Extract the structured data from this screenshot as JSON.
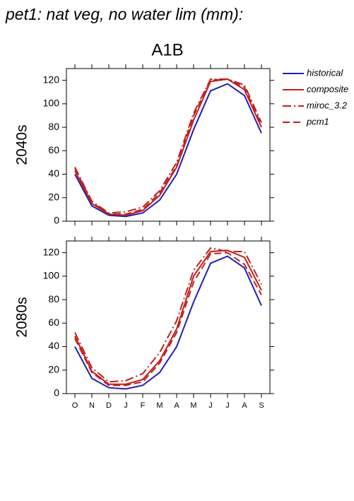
{
  "title": "pet1: nat veg, no water lim (mm):",
  "scenario": "A1B",
  "chart_data": [
    {
      "type": "line",
      "ylabel": "2040s",
      "ylim": [
        0,
        130
      ],
      "yticks": [
        0,
        20,
        40,
        60,
        80,
        100,
        120
      ],
      "series": [
        {
          "name": "historical",
          "color": "#1f1fb4",
          "dash": "none",
          "values": [
            40,
            13,
            5,
            4,
            7,
            18,
            40,
            78,
            111,
            117,
            107,
            75
          ]
        },
        {
          "name": "composite",
          "color": "#c0201f",
          "dash": "none",
          "values": [
            43,
            15,
            6,
            5,
            9,
            22,
            46,
            86,
            119,
            121,
            112,
            80
          ]
        },
        {
          "name": "miroc_3.2",
          "color": "#c0201f",
          "dash": "12,4,2,4",
          "values": [
            46,
            17,
            7,
            8,
            12,
            26,
            50,
            92,
            121,
            121,
            116,
            84
          ]
        },
        {
          "name": "pcm1",
          "color": "#c0201f",
          "dash": "10,5",
          "values": [
            45,
            16,
            6,
            6,
            10,
            24,
            47,
            90,
            120,
            121,
            114,
            82
          ]
        }
      ]
    },
    {
      "type": "line",
      "ylabel": "2080s",
      "ylim": [
        0,
        130
      ],
      "yticks": [
        0,
        20,
        40,
        60,
        80,
        100,
        120
      ],
      "categories": [
        "O",
        "N",
        "D",
        "J",
        "F",
        "M",
        "A",
        "M",
        "J",
        "J",
        "A",
        "S"
      ],
      "series": [
        {
          "color": "#1f1fb4",
          "dash": "none",
          "values": [
            40,
            13,
            5,
            4,
            7,
            18,
            40,
            78,
            111,
            117,
            107,
            75
          ]
        },
        {
          "color": "#c0201f",
          "dash": "none",
          "values": [
            49,
            19,
            8,
            8,
            12,
            28,
            55,
            100,
            121,
            122,
            116,
            88
          ]
        },
        {
          "color": "#c0201f",
          "dash": "12,4,2,4",
          "values": [
            52,
            22,
            10,
            11,
            17,
            35,
            62,
            105,
            124,
            121,
            121,
            93
          ]
        },
        {
          "color": "#c0201f",
          "dash": "10,5",
          "values": [
            47,
            18,
            7,
            7,
            10,
            26,
            52,
            95,
            119,
            120,
            110,
            84
          ]
        }
      ]
    }
  ]
}
